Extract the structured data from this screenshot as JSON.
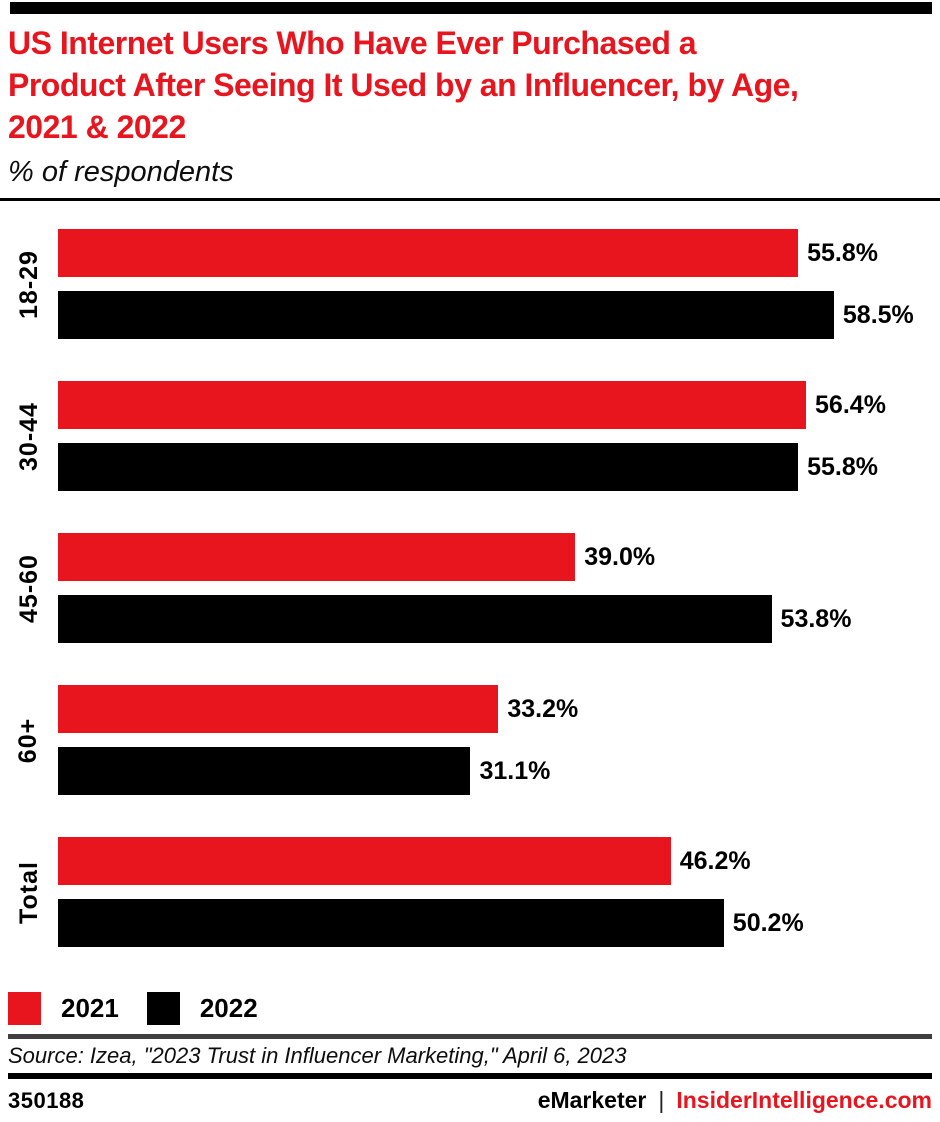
{
  "header": {
    "title_lines": [
      "US Internet Users Who Have Ever Purchased a",
      "Product After Seeing It Used by an Influencer, by Age,",
      "2021 & 2022"
    ],
    "subtitle": "% of respondents"
  },
  "chart_data": {
    "type": "bar",
    "orientation": "horizontal",
    "title": "US Internet Users Who Have Ever Purchased a Product After Seeing It Used by an Influencer, by Age, 2021 & 2022",
    "subtitle": "% of respondents",
    "categories": [
      "18-29",
      "30-44",
      "45-60",
      "60+",
      "Total"
    ],
    "series": [
      {
        "name": "2021",
        "color": "#e8141e",
        "values": [
          55.8,
          56.4,
          39.0,
          33.2,
          46.2
        ],
        "labels": [
          "55.8%",
          "56.4%",
          "39.0%",
          "33.2%",
          "46.2%"
        ]
      },
      {
        "name": "2022",
        "color": "#000000",
        "values": [
          58.5,
          55.8,
          53.8,
          31.1,
          50.2
        ],
        "labels": [
          "58.5%",
          "55.8%",
          "53.8%",
          "31.1%",
          "50.2%"
        ]
      }
    ],
    "value_suffix": "%",
    "xlim": [
      0,
      66.5
    ],
    "grid": false,
    "legend_position": "bottom-left"
  },
  "legend": [
    {
      "label": "2021",
      "color": "#e8141e"
    },
    {
      "label": "2022",
      "color": "#000000"
    }
  ],
  "footer": {
    "source": "Source: Izea, \"2023 Trust in Influencer Marketing,\" April 6, 2023",
    "chart_id": "350188",
    "brand": "eMarketer",
    "separator": "|",
    "site": "InsiderIntelligence.com"
  },
  "colors": {
    "accent_red": "#e8141e",
    "black": "#000000",
    "rule_gray": "#3f3f3f"
  }
}
